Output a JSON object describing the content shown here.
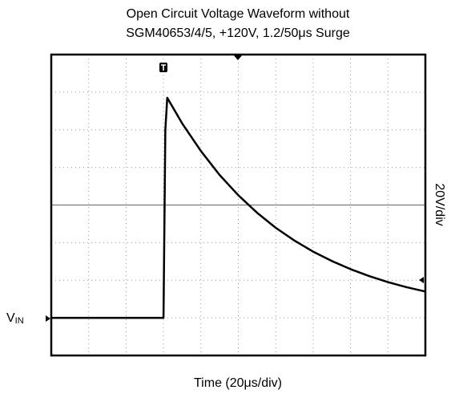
{
  "chart_data": {
    "type": "line",
    "title": [
      "Open Circuit Voltage Waveform without",
      "SGM40653/4/5, +120V, 1.2/50μs Surge"
    ],
    "x_label": "Time (20μs/div)",
    "y_label": "20V/div",
    "level_label": "V",
    "level_label_subscript": "IN",
    "x": [
      0,
      59.5,
      60,
      61,
      62,
      70,
      80,
      90,
      100,
      110,
      120,
      130,
      140,
      150,
      160,
      170,
      180,
      190,
      200
    ],
    "series": [
      {
        "color": "#000000",
        "values": [
          0,
          0,
          0,
          100,
          117,
          103.4,
          88.7,
          76.0,
          65.2,
          55.9,
          47.9,
          41.1,
          35.2,
          30.2,
          25.9,
          22.2,
          19.0,
          16.3,
          14.0
        ]
      }
    ],
    "xlim": [
      0,
      200
    ],
    "ylim": [
      -20,
      140
    ],
    "xticks": [
      0,
      20,
      40,
      60,
      80,
      100,
      120,
      140,
      160,
      180,
      200
    ],
    "yticks": [
      -20,
      0,
      20,
      40,
      60,
      80,
      100,
      120,
      140
    ],
    "grid": true
  }
}
